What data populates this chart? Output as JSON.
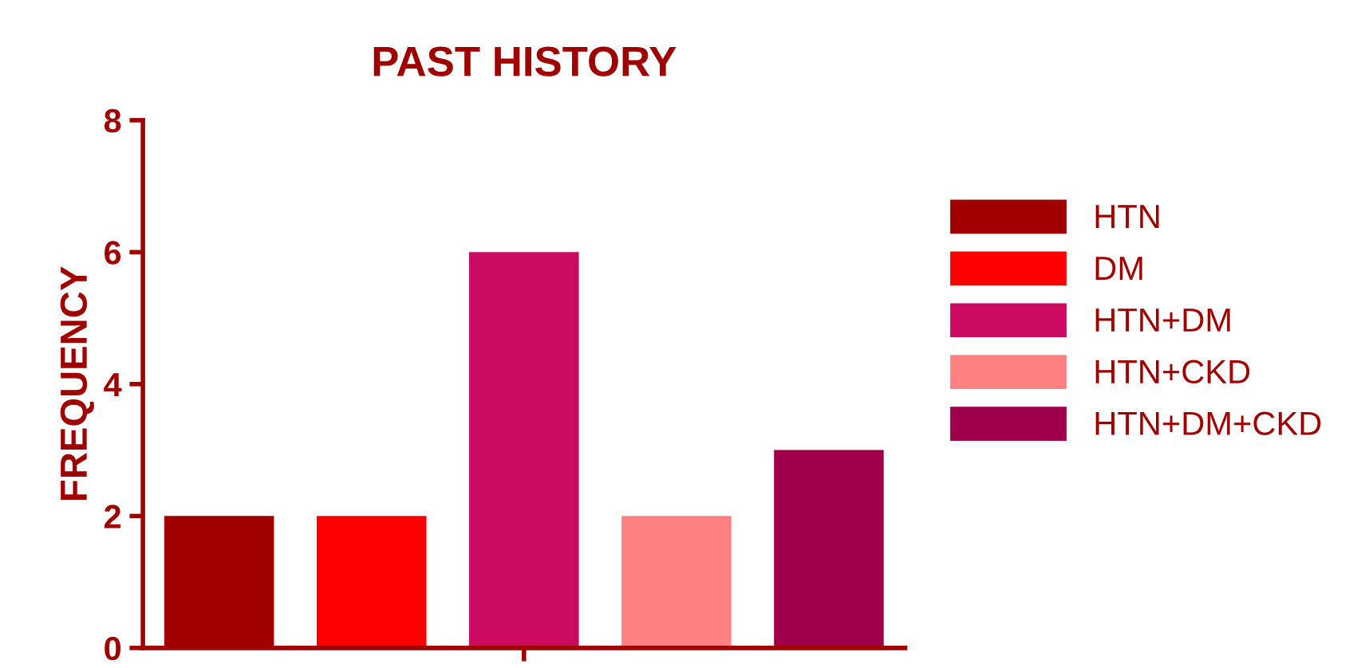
{
  "chart_data": {
    "type": "bar",
    "title": "PAST HISTORY",
    "ylabel": "FREQUENCY",
    "categories": [
      null,
      null,
      null,
      null,
      null
    ],
    "series": [
      {
        "name": "HTN",
        "color": "#a00000",
        "values": [
          2,
          null,
          null,
          null,
          null
        ]
      },
      {
        "name": "DM",
        "color": "#ff0000",
        "values": [
          null,
          2,
          null,
          null,
          null
        ]
      },
      {
        "name": "HTN+DM",
        "color": "#cc0a60",
        "values": [
          null,
          null,
          6,
          null,
          null
        ]
      },
      {
        "name": "HTN+CKD",
        "color": "#ff8080",
        "values": [
          null,
          null,
          null,
          2,
          null
        ]
      },
      {
        "name": "HTN+DM+CKD",
        "color": "#a0004a",
        "values": [
          null,
          null,
          null,
          null,
          3
        ]
      }
    ],
    "ylim": [
      0,
      8
    ],
    "yticks": [
      0,
      2,
      4,
      6,
      8
    ],
    "grid": false,
    "legend": "right"
  }
}
